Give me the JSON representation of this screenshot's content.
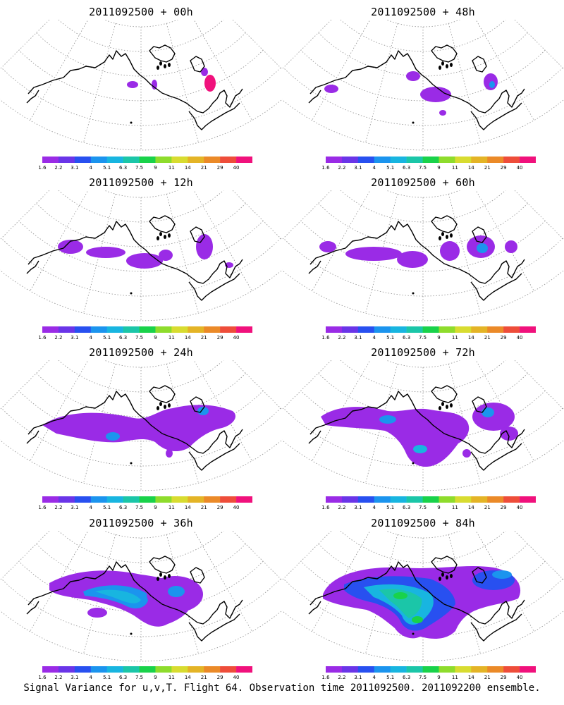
{
  "titles": [
    "2011092500 + 00h",
    "2011092500 + 48h",
    "2011092500 + 12h",
    "2011092500 + 60h",
    "2011092500 + 24h",
    "2011092500 + 72h",
    "2011092500 + 36h",
    "2011092500 + 84h"
  ],
  "colorbar": {
    "labels": [
      "1.6",
      "2.2",
      "3.1",
      "4",
      "5.1",
      "6.3",
      "7.5",
      "9",
      "11",
      "14",
      "21",
      "29",
      "40"
    ],
    "colors": [
      "#9a2be6",
      "#6a35e8",
      "#2850f0",
      "#1b94ee",
      "#18b5e0",
      "#1bc6a8",
      "#19d24a",
      "#8edc2c",
      "#d8dc30",
      "#e4b426",
      "#eb8a28",
      "#ee4d3a",
      "#f0117c"
    ]
  },
  "footer": "Signal Variance for u,v,T. Flight 64. Observation time 2011092500. 2011092200 ensemble."
}
